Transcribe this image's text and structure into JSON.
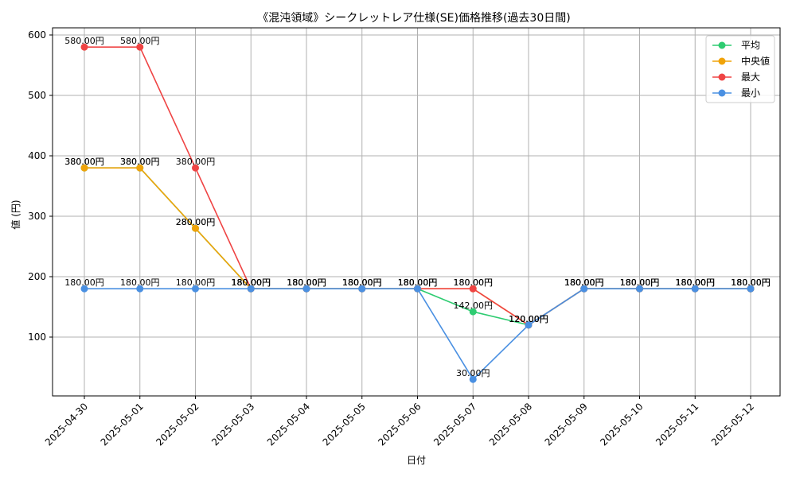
{
  "chart_data": {
    "type": "line",
    "title": "《混沌領域》シークレットレア仕様(SE)価格推移(過去30日間)",
    "xlabel": "日付",
    "ylabel": "値 (円)",
    "x": [
      "2025-04-30",
      "2025-05-01",
      "2025-05-02",
      "2025-05-03",
      "2025-05-04",
      "2025-05-05",
      "2025-05-06",
      "2025-05-07",
      "2025-05-08",
      "2025-05-09",
      "2025-05-10",
      "2025-05-11",
      "2025-05-12"
    ],
    "ylim": [
      0,
      610
    ],
    "yticks": [
      100,
      200,
      300,
      400,
      500,
      600
    ],
    "grid": true,
    "legend_position": "top-right",
    "label_suffix": "円",
    "series": [
      {
        "name": "平均",
        "color": "#2ecc71",
        "values": [
          380,
          380,
          280,
          180,
          180,
          180,
          180,
          142,
          120,
          180,
          180,
          180,
          180
        ]
      },
      {
        "name": "中央値",
        "color": "#f0a30a",
        "values": [
          380,
          380,
          280,
          180,
          180,
          180,
          180,
          180,
          120,
          180,
          180,
          180,
          180
        ]
      },
      {
        "name": "最大",
        "color": "#ef4444",
        "values": [
          580,
          580,
          380,
          180,
          180,
          180,
          180,
          180,
          120,
          180,
          180,
          180,
          180
        ]
      },
      {
        "name": "最小",
        "color": "#4a90e2",
        "values": [
          180,
          180,
          180,
          180,
          180,
          180,
          180,
          30,
          120,
          180,
          180,
          180,
          180
        ]
      }
    ]
  }
}
